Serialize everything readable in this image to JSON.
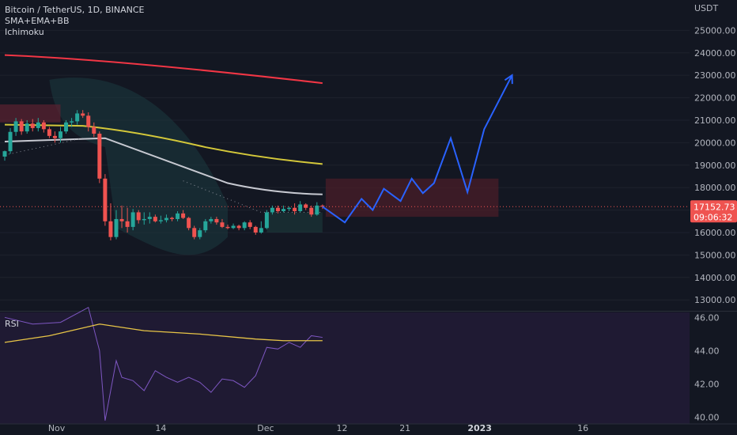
{
  "legend": {
    "symbol": "Bitcoin / TetherUS, 1D, BINANCE",
    "indicator1": "SMA+EMA+BB",
    "indicator2": "Ichimoku"
  },
  "rsi_label": "RSI",
  "colors": {
    "background": "#131722",
    "price_up": "#26a69a",
    "price_down": "#ef5350",
    "sma_red": "#f23645",
    "ema_yellow": "#d4c83a",
    "ma_white": "#c7c9d1",
    "forecast_blue": "#2962ff",
    "rsi_line": "#7e57c2",
    "rsi_ma": "#e8c547",
    "rsi_bg": "#1f1a33"
  },
  "chart_data": [
    {
      "type": "line",
      "title": "Bitcoin / TetherUS, 1D, BINANCE",
      "y_axis_unit": "USDT",
      "y_ticks": [
        "25000.00",
        "24000.00",
        "23000.00",
        "22000.00",
        "21000.00",
        "20000.00",
        "19000.00",
        "18000.00",
        "17000.00",
        "16000.00",
        "15000.00",
        "14000.00",
        "13000.00"
      ],
      "ylim": [
        12550,
        26350
      ],
      "x_ticks": [
        "Nov",
        "14",
        "Dec",
        "12",
        "21",
        "2023",
        "16"
      ],
      "last_price": "17152.73",
      "countdown": "09:06:32",
      "candles": [
        [
          19380,
          19620,
          19200,
          19650
        ],
        [
          19620,
          20480,
          19500,
          20650
        ],
        [
          20480,
          20950,
          20300,
          21100
        ],
        [
          20950,
          20500,
          20350,
          21050
        ],
        [
          20500,
          20850,
          20400,
          21000
        ],
        [
          20850,
          20650,
          20500,
          21050
        ],
        [
          20650,
          20900,
          20500,
          21100
        ],
        [
          20900,
          20600,
          20450,
          21000
        ],
        [
          20600,
          20300,
          20200,
          20700
        ],
        [
          20300,
          20200,
          20000,
          20500
        ],
        [
          20200,
          20500,
          20000,
          20700
        ],
        [
          20500,
          20900,
          20400,
          21000
        ],
        [
          20900,
          20950,
          20700,
          21100
        ],
        [
          20950,
          21300,
          20800,
          21450
        ],
        [
          21300,
          21200,
          21100,
          21450
        ],
        [
          21200,
          20700,
          20500,
          21350
        ],
        [
          20700,
          20400,
          20250,
          20900
        ],
        [
          20400,
          18400,
          18200,
          20500
        ],
        [
          18400,
          16500,
          16300,
          18600
        ],
        [
          16500,
          15800,
          15650,
          17300
        ],
        [
          15800,
          16600,
          15700,
          17000
        ],
        [
          16600,
          16500,
          16200,
          17200
        ],
        [
          16500,
          16250,
          16000,
          17100
        ],
        [
          16250,
          16900,
          16100,
          17050
        ],
        [
          16900,
          16550,
          16400,
          17000
        ],
        [
          16550,
          16600,
          16350,
          16900
        ],
        [
          16600,
          16700,
          16400,
          16900
        ],
        [
          16700,
          16500,
          16450,
          16800
        ],
        [
          16500,
          16550,
          16400,
          16750
        ],
        [
          16550,
          16650,
          16450,
          16800
        ],
        [
          16650,
          16600,
          16500,
          16700
        ],
        [
          16600,
          16850,
          16500,
          16950
        ],
        [
          16850,
          16650,
          16600,
          17000
        ],
        [
          16650,
          16200,
          16100,
          16700
        ],
        [
          16200,
          15800,
          15700,
          16300
        ],
        [
          15800,
          16100,
          15700,
          16200
        ],
        [
          16100,
          16500,
          16000,
          16600
        ],
        [
          16500,
          16600,
          16400,
          16700
        ],
        [
          16600,
          16450,
          16350,
          16700
        ],
        [
          16450,
          16250,
          16200,
          16600
        ],
        [
          16250,
          16200,
          16150,
          16350
        ],
        [
          16200,
          16300,
          16150,
          16400
        ],
        [
          16300,
          16200,
          16100,
          16350
        ],
        [
          16200,
          16450,
          16100,
          16500
        ],
        [
          16450,
          16250,
          16150,
          16550
        ],
        [
          16250,
          16000,
          15900,
          16300
        ],
        [
          16000,
          16200,
          15950,
          16500
        ],
        [
          16200,
          16900,
          16150,
          17000
        ],
        [
          16900,
          17100,
          16800,
          17200
        ],
        [
          17100,
          16950,
          16850,
          17200
        ],
        [
          16950,
          17050,
          16900,
          17200
        ],
        [
          17050,
          17100,
          16950,
          17150
        ],
        [
          17100,
          16950,
          16800,
          17300
        ],
        [
          16950,
          17250,
          16900,
          17400
        ],
        [
          17250,
          17100,
          17000,
          17300
        ],
        [
          17100,
          16800,
          16700,
          17200
        ],
        [
          16800,
          17200,
          16750,
          17350
        ],
        [
          17200,
          17150,
          17050,
          17250
        ]
      ],
      "series": [
        {
          "name": "",
          "role": "sma_red",
          "x": [
            0,
            57
          ],
          "values": [
            23900,
            22650
          ]
        },
        {
          "name": "",
          "role": "ema_yellow",
          "x": [
            0,
            57
          ],
          "values": [
            20800,
            19050
          ]
        },
        {
          "name": "",
          "role": "ma_white",
          "x": [
            0,
            57
          ],
          "values": [
            20100,
            17700
          ]
        },
        {
          "name": "",
          "role": "forecast",
          "x": [
            57,
            61,
            64,
            66,
            68,
            71,
            73,
            75,
            77,
            80,
            83,
            86,
            91
          ],
          "values": [
            17150,
            16450,
            17500,
            17000,
            17950,
            17400,
            18400,
            17750,
            18200,
            20200,
            17800,
            20600,
            23000
          ]
        }
      ]
    },
    {
      "type": "line",
      "title": "RSI",
      "y_ticks": [
        "46.00",
        "44.00",
        "42.00",
        "40.00"
      ],
      "ylim": [
        39.6,
        46.3
      ],
      "series": [
        {
          "name": "",
          "role": "rsi",
          "x": [
            0,
            5,
            10,
            15,
            17,
            18,
            20,
            21,
            23,
            25,
            27,
            29,
            31,
            33,
            35,
            37,
            39,
            41,
            43,
            45,
            47,
            49,
            51,
            53,
            55,
            57
          ],
          "values": [
            46,
            45.6,
            45.7,
            46.6,
            44,
            39.8,
            43.4,
            42.4,
            42.2,
            41.6,
            42.8,
            42.4,
            42.1,
            42.4,
            42.1,
            41.5,
            42.3,
            42.2,
            41.8,
            42.5,
            44.2,
            44.1,
            44.5,
            44.2,
            44.9,
            44.8
          ]
        },
        {
          "name": "",
          "role": "rsi_ma",
          "x": [
            0,
            8,
            17,
            25,
            35,
            45,
            50,
            57
          ],
          "values": [
            44.5,
            44.9,
            45.6,
            45.2,
            45.0,
            44.7,
            44.6,
            44.6
          ]
        }
      ]
    }
  ]
}
